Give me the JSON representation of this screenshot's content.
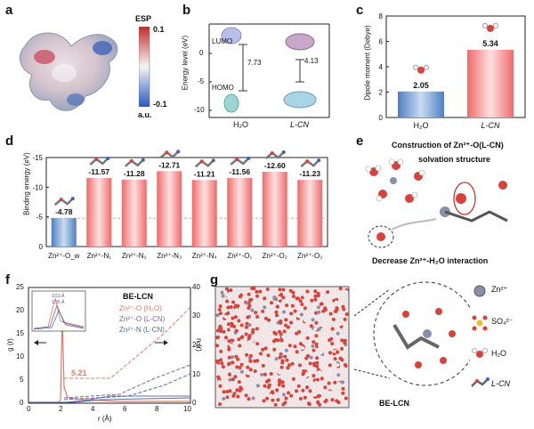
{
  "panels": {
    "a": {
      "letter": "a",
      "colorbar_title": "ESP",
      "colorbar_max": "0.1",
      "colorbar_min": "-0.1",
      "unit": "a.u."
    },
    "b": {
      "letter": "b",
      "ylabel": "Energy level (eV)",
      "lumo": "LUMO",
      "homo": "HOMO",
      "gap_h2o": "7.73",
      "gap_lcn": "4.13",
      "xlabel_h2o": "H₂O",
      "xlabel_lcn": "L-CN",
      "ticks": [
        "0",
        "-5",
        "-10"
      ]
    },
    "c": {
      "letter": "c",
      "ylabel": "Dipole moment (Debye)",
      "ticks": [
        "0",
        "2",
        "4",
        "6",
        "8"
      ]
    },
    "d": {
      "letter": "d",
      "ylabel": "Binding energy (eV)",
      "ticks": [
        "0",
        "-5",
        "-10",
        "-15"
      ]
    },
    "e": {
      "letter": "e",
      "title_line1": "Construction of Zn²⁺-O(L-CN)",
      "title_line2": "solvation structure",
      "caption": "Decrease Zn²⁺-H₂O interaction"
    },
    "f": {
      "letter": "f",
      "label": "BE-LCN",
      "ylabel_left": "g (r)",
      "ylabel_right": "n (r)",
      "xlabel": "r (Å)",
      "left_ticks": [
        "0",
        "5",
        "10",
        "15",
        "20",
        "25"
      ],
      "right_ticks": [
        "0",
        "10",
        "20",
        "30",
        "40"
      ],
      "x_ticks": [
        "0",
        "2",
        "4",
        "6",
        "8",
        "10"
      ],
      "annotation": "5.21",
      "inset_annotation": "3.53 Å",
      "inset_annotation2": "1.95 Å",
      "legend": [
        "Zn²⁺-O (H₂O)",
        "Zn²⁺-O (L-CN)",
        "Zn²⁺-N (L-CN)"
      ],
      "legend_colors": [
        "#e07b6a",
        "#8a5fa8",
        "#4a6fa0"
      ]
    },
    "g": {
      "letter": "g",
      "box_label": "BE-LCN",
      "legend": [
        "Zn²⁺",
        "SO₄²⁻",
        "H₂O",
        "L-CN"
      ]
    }
  },
  "chart_data": [
    {
      "type": "bar",
      "panel": "c",
      "categories": [
        "H₂O",
        "L-CN"
      ],
      "values": [
        2.05,
        5.34
      ],
      "ylabel": "Dipole moment (Debye)",
      "ylim": [
        0,
        8
      ]
    },
    {
      "type": "bar",
      "panel": "d",
      "categories": [
        "Zn²⁺-O_w",
        "Zn²⁺-N₁",
        "Zn²⁺-N₂",
        "Zn²⁺-N₃",
        "Zn²⁺-N₄",
        "Zn²⁺-O₁",
        "Zn²⁺-O₂",
        "Zn²⁺-O₃"
      ],
      "values": [
        -4.78,
        -11.57,
        -11.28,
        -12.71,
        -11.21,
        -11.56,
        -12.6,
        -11.23
      ],
      "ylabel": "Binding energy (eV)",
      "ylim": [
        0,
        -15
      ]
    }
  ],
  "colors": {
    "bar_blue": "#6f9fd6",
    "bar_red": "#f07b7b",
    "bar_red_light": "#fbd3d3"
  }
}
